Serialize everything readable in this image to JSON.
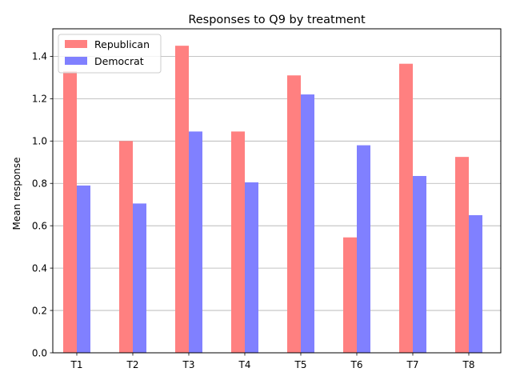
{
  "chart_data": {
    "type": "bar",
    "title": "Responses to Q9 by treatment",
    "xlabel": "",
    "ylabel": "Mean response",
    "categories": [
      "T1",
      "T2",
      "T3",
      "T4",
      "T5",
      "T6",
      "T7",
      "T8"
    ],
    "series": [
      {
        "name": "Republican",
        "color": "#ff8080",
        "values": [
          1.33,
          1.0,
          1.45,
          1.045,
          1.31,
          0.545,
          1.365,
          0.925
        ]
      },
      {
        "name": "Democrat",
        "color": "#8080ff",
        "values": [
          0.79,
          0.705,
          1.045,
          0.805,
          1.22,
          0.98,
          0.835,
          0.65
        ]
      }
    ],
    "ylim": [
      0,
      1.53
    ],
    "yticks": [
      0.0,
      0.2,
      0.4,
      0.6,
      0.8,
      1.0,
      1.2,
      1.4
    ],
    "ytick_labels": [
      "0.0",
      "0.2",
      "0.4",
      "0.6",
      "0.8",
      "1.0",
      "1.2",
      "1.4"
    ],
    "grid": "horizontal",
    "legend_position": "top-left"
  }
}
